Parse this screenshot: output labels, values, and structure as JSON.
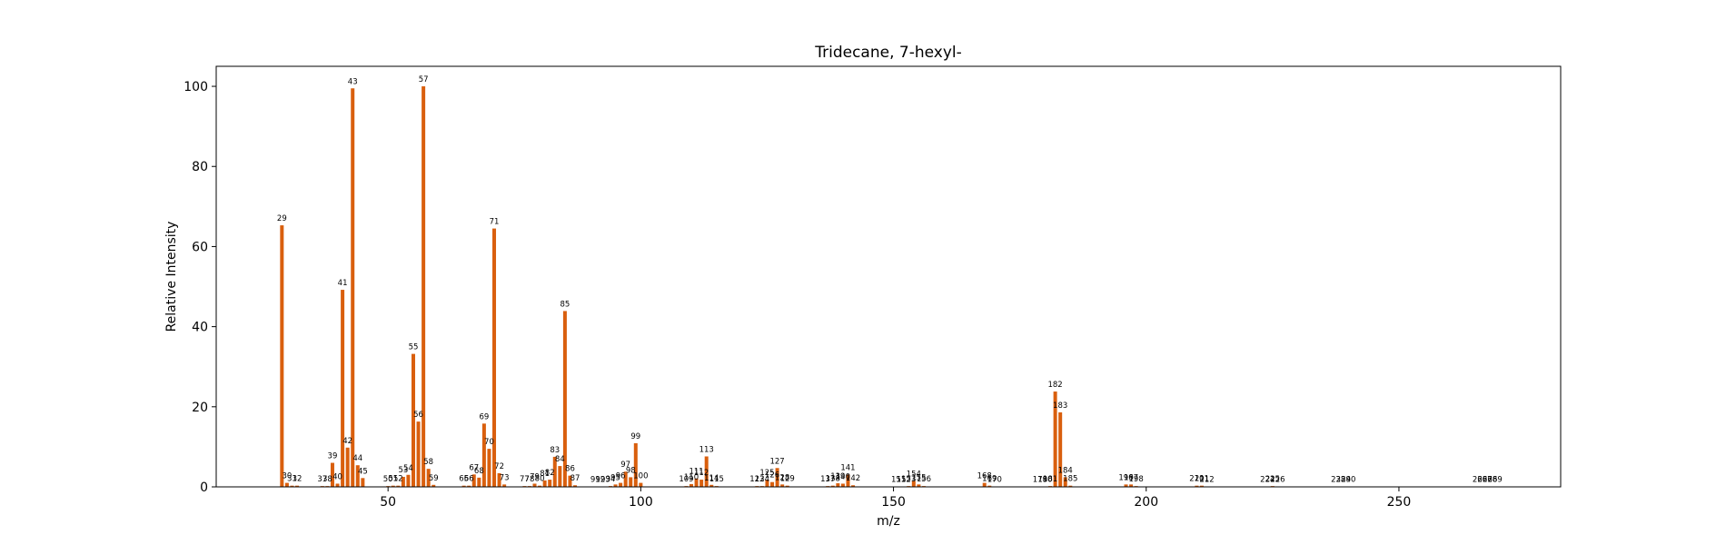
{
  "chart_data": {
    "type": "bar",
    "title": "Tridecane, 7-hexyl-",
    "xlabel": "m/z",
    "ylabel": "Relative Intensity",
    "xlim": [
      16,
      282
    ],
    "ylim": [
      0,
      105
    ],
    "xticks": [
      50,
      100,
      150,
      200,
      250
    ],
    "yticks": [
      0,
      20,
      40,
      60,
      80,
      100
    ],
    "bar_color": "#d95f0e",
    "grid": false,
    "legend": "none",
    "series": [
      {
        "x": [
          29,
          30,
          31,
          32,
          37,
          38,
          39,
          40,
          41,
          42,
          43,
          44,
          45,
          50,
          51,
          52,
          53,
          54,
          55,
          56,
          57,
          58,
          59,
          65,
          66,
          67,
          68,
          69,
          70,
          71,
          72,
          73,
          77,
          78,
          79,
          80,
          81,
          82,
          83,
          84,
          85,
          86,
          87,
          91,
          92,
          93,
          94,
          95,
          96,
          97,
          98,
          99,
          100,
          109,
          110,
          111,
          112,
          113,
          114,
          115,
          123,
          124,
          125,
          126,
          127,
          128,
          129,
          137,
          138,
          139,
          140,
          141,
          142,
          151,
          152,
          153,
          154,
          155,
          156,
          168,
          169,
          170,
          179,
          180,
          181,
          182,
          183,
          184,
          185,
          196,
          197,
          198,
          210,
          211,
          212,
          224,
          225,
          226,
          238,
          239,
          240,
          266,
          267,
          268,
          269
        ],
        "values": [
          65.3,
          1.0,
          0.3,
          0.3,
          0.2,
          0.2,
          6.0,
          0.8,
          49.2,
          9.8,
          99.5,
          5.4,
          2.2,
          0.2,
          0.3,
          0.3,
          2.5,
          3.0,
          33.2,
          16.3,
          100,
          4.5,
          0.5,
          0.3,
          0.3,
          3.1,
          2.3,
          15.8,
          9.5,
          64.5,
          3.4,
          0.6,
          0.2,
          0.2,
          0.8,
          0.3,
          1.6,
          1.8,
          7.5,
          5.2,
          43.9,
          2.8,
          0.4,
          0.1,
          0.1,
          0.1,
          0.2,
          0.6,
          1.0,
          3.8,
          2.4,
          10.9,
          1.0,
          0.2,
          0.7,
          2.1,
          1.8,
          7.6,
          0.5,
          0.2,
          0.2,
          0.2,
          1.8,
          1.2,
          4.7,
          0.6,
          0.3,
          0.2,
          0.3,
          0.9,
          0.8,
          3.1,
          0.4,
          0.1,
          0.1,
          0.2,
          1.5,
          0.6,
          0.2,
          1.0,
          0.3,
          0.1,
          0.1,
          0.1,
          0.2,
          23.8,
          18.6,
          2.4,
          0.3,
          0.6,
          0.6,
          0.2,
          0.3,
          0.3,
          0.1,
          0.1,
          0.2,
          0.1,
          0.1,
          0.1,
          0.1,
          0.1,
          0.1,
          0.1,
          0.1
        ]
      }
    ]
  }
}
